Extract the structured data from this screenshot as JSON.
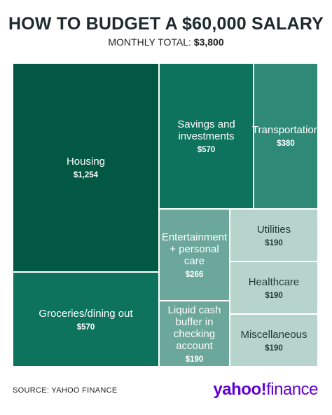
{
  "title": "HOW TO BUDGET A $60,000 SALARY",
  "subtitle_label": "MONTHLY TOTAL:",
  "subtitle_value": "$3,800",
  "source": "SOURCE: YAHOO FINANCE",
  "logo_main": "yahoo",
  "logo_bang": "!",
  "logo_suffix": "finance",
  "colors": {
    "brand": "#5f01d1",
    "shade_1": "#035844",
    "shade_2": "#0d735d",
    "shade_3": "#2e8a76",
    "shade_4": "#6ba79a",
    "shade_5": "#b7d4cc"
  },
  "chart_data": {
    "type": "treemap",
    "title": "HOW TO BUDGET A $60,000 SALARY",
    "subtitle": "MONTHLY TOTAL: $3,800",
    "items": [
      {
        "name": "Housing",
        "value": 1254,
        "value_label": "$1,254"
      },
      {
        "name": "Groceries/dining out",
        "value": 570,
        "value_label": "$570"
      },
      {
        "name": "Savings and investments",
        "value": 570,
        "value_label": "$570"
      },
      {
        "name": "Transportation",
        "value": 380,
        "value_label": "$380"
      },
      {
        "name": "Entertainment + personal care",
        "value": 266,
        "value_label": "$266"
      },
      {
        "name": "Utilities",
        "value": 190,
        "value_label": "$190"
      },
      {
        "name": "Liquid cash buffer in checking account",
        "value": 190,
        "value_label": "$190"
      },
      {
        "name": "Healthcare",
        "value": 190,
        "value_label": "$190"
      },
      {
        "name": "Miscellaneous",
        "value": 190,
        "value_label": "$190"
      }
    ]
  }
}
